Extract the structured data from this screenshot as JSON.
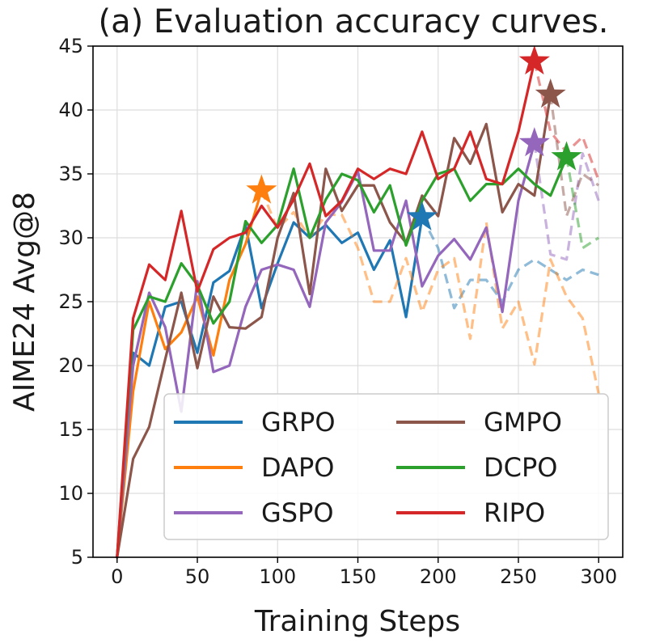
{
  "chart_data": {
    "type": "line",
    "title": "(a) Evaluation accuracy curves.",
    "xlabel": "Training Steps",
    "ylabel": "AIME24 Avg@8",
    "xlim": [
      -15,
      315
    ],
    "ylim": [
      5,
      45
    ],
    "xticks": [
      0,
      50,
      100,
      150,
      200,
      250,
      300
    ],
    "yticks": [
      5,
      10,
      15,
      20,
      25,
      30,
      35,
      40,
      45
    ],
    "grid": true,
    "legend_position": "lower-right",
    "series": [
      {
        "name": "GRPO",
        "color": "#1f77b4",
        "solid": {
          "x": [
            0,
            10,
            20,
            30,
            40,
            50,
            60,
            70,
            80,
            90,
            100,
            110,
            120,
            130,
            140,
            150,
            160,
            170,
            180,
            190
          ],
          "y": [
            5,
            21,
            20,
            24.6,
            25,
            21,
            26.5,
            27.4,
            31,
            24.5,
            28,
            31.2,
            30,
            31,
            29.6,
            30.4,
            27.5,
            29.8,
            23.8,
            31.6
          ]
        },
        "dashed": {
          "x": [
            190,
            200,
            210,
            220,
            230,
            240,
            250,
            260,
            270,
            280,
            290,
            300
          ],
          "y": [
            31.6,
            29.2,
            24.5,
            26.7,
            26.7,
            25,
            27.5,
            28.3,
            27.5,
            26.7,
            27.5,
            27.1
          ]
        },
        "best": {
          "x": 190,
          "y": 31.6
        }
      },
      {
        "name": "DAPO",
        "color": "#ff7f0e",
        "solid": {
          "x": [
            0,
            10,
            20,
            30,
            40,
            50,
            60,
            70,
            80,
            90
          ],
          "y": [
            5,
            18,
            25,
            21.3,
            22.6,
            25.4,
            20.8,
            26.7,
            29.5,
            33.7
          ]
        },
        "dashed": {
          "x": [
            90,
            100,
            110,
            120,
            130,
            140,
            150,
            160,
            170,
            180,
            190,
            200,
            210,
            220,
            230,
            240,
            250,
            260,
            270,
            280,
            290,
            300
          ],
          "y": [
            33.7,
            30.7,
            32,
            30,
            31.8,
            31.8,
            29.2,
            25,
            25,
            28.4,
            24.2,
            27.5,
            28.4,
            22.1,
            31.2,
            22.9,
            25,
            20.1,
            28.3,
            25.4,
            23.7,
            17.8
          ]
        },
        "best": {
          "x": 90,
          "y": 33.7
        }
      },
      {
        "name": "GSPO",
        "color": "#9467bd",
        "solid": {
          "x": [
            0,
            10,
            20,
            30,
            40,
            50,
            60,
            70,
            80,
            90,
            100,
            110,
            120,
            130,
            140,
            150,
            160,
            170,
            180,
            190,
            200,
            210,
            220,
            230,
            240,
            250,
            260
          ],
          "y": [
            5,
            20,
            25.7,
            23,
            16.4,
            26.6,
            19.5,
            20,
            24.6,
            27.5,
            27.9,
            27.5,
            24.6,
            31.2,
            32.8,
            35.2,
            29,
            29,
            32.9,
            26.2,
            28.6,
            29.9,
            28.3,
            30.8,
            24.2,
            32.9,
            37.4
          ]
        },
        "dashed": {
          "x": [
            260,
            270,
            280,
            290,
            300
          ],
          "y": [
            37.4,
            28.7,
            28.3,
            36.6,
            32.9
          ]
        },
        "best": {
          "x": 260,
          "y": 37.4
        }
      },
      {
        "name": "GMPO",
        "color": "#8c564b",
        "solid": {
          "x": [
            0,
            10,
            20,
            30,
            40,
            50,
            60,
            70,
            80,
            90,
            100,
            110,
            120,
            130,
            140,
            150,
            160,
            170,
            180,
            190,
            200,
            210,
            220,
            230,
            240,
            250,
            260,
            270
          ],
          "y": [
            5,
            12.7,
            15.2,
            20.5,
            25.7,
            19.8,
            25.4,
            23,
            22.9,
            23.8,
            30,
            33.5,
            25.6,
            35.4,
            32.1,
            34.1,
            34.1,
            31.2,
            29.6,
            33.3,
            31.7,
            37.8,
            35.8,
            38.9,
            32,
            34.2,
            33.3,
            41.2
          ]
        },
        "dashed": {
          "x": [
            270,
            280,
            290,
            300
          ],
          "y": [
            41.2,
            31.7,
            35,
            34.1
          ]
        },
        "best": {
          "x": 270,
          "y": 41.2
        }
      },
      {
        "name": "DCPO",
        "color": "#2ca02c",
        "solid": {
          "x": [
            0,
            10,
            20,
            30,
            40,
            50,
            60,
            70,
            80,
            90,
            100,
            110,
            120,
            130,
            140,
            150,
            160,
            170,
            180,
            190,
            200,
            210,
            220,
            230,
            240,
            250,
            260,
            270,
            280
          ],
          "y": [
            5,
            22.8,
            25.4,
            25,
            28,
            26.3,
            23.3,
            25,
            31.3,
            29.6,
            31,
            35.4,
            30,
            33,
            35,
            34.5,
            32,
            34.1,
            29.4,
            32.9,
            35,
            35.4,
            32.9,
            34.2,
            34.2,
            35.4,
            34.2,
            33.3,
            36.3
          ]
        },
        "dashed": {
          "x": [
            280,
            290,
            300
          ],
          "y": [
            36.3,
            29.2,
            30
          ]
        },
        "best": {
          "x": 280,
          "y": 36.3
        }
      },
      {
        "name": "RIPO",
        "color": "#d62728",
        "solid": {
          "x": [
            0,
            10,
            20,
            30,
            40,
            50,
            60,
            70,
            80,
            90,
            100,
            110,
            120,
            130,
            140,
            150,
            160,
            170,
            180,
            190,
            200,
            210,
            220,
            230,
            240,
            250,
            260
          ],
          "y": [
            5,
            23.7,
            27.9,
            26.7,
            32.1,
            25.8,
            29.1,
            30,
            30.4,
            32.5,
            30.8,
            33,
            35.8,
            31.7,
            32.9,
            35.4,
            34.6,
            35.4,
            35,
            38.3,
            34.6,
            35.4,
            38.3,
            34.6,
            34.2,
            38.3,
            43.8
          ]
        },
        "dashed": {
          "x": [
            260,
            270,
            280,
            290,
            300
          ],
          "y": [
            43.8,
            38.3,
            36.7,
            37.9,
            34.5
          ]
        },
        "best": {
          "x": 260,
          "y": 43.8
        }
      }
    ]
  }
}
